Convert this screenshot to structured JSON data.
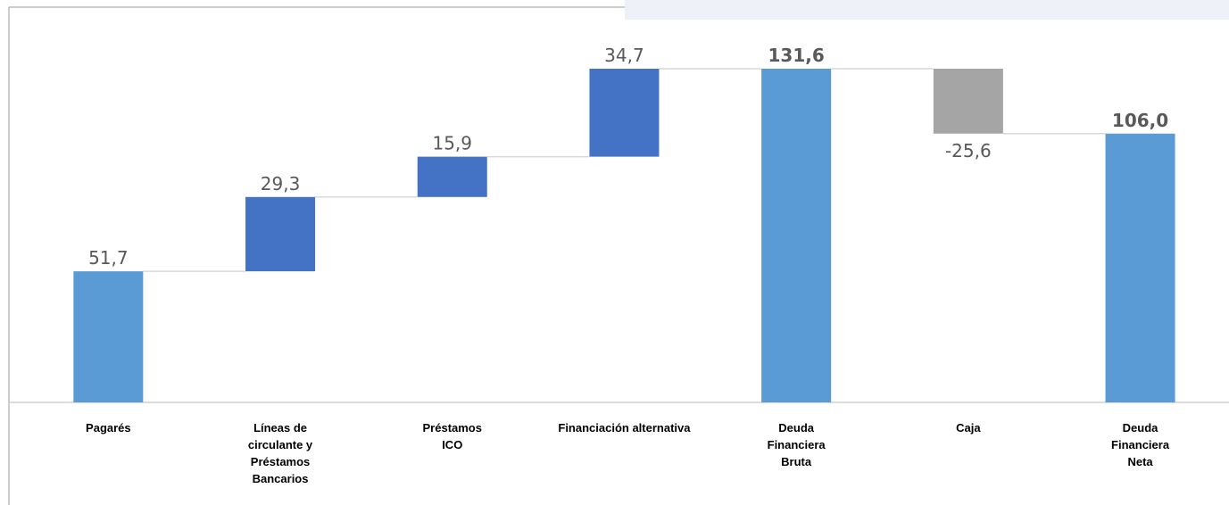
{
  "chart_data": {
    "type": "waterfall",
    "categories": [
      "Pagarés",
      "Líneas de circulante y Préstamos Bancarios",
      "Préstamos ICO",
      "Financiación alternativa",
      "Deuda Financiera Bruta",
      "Caja",
      "Deuda Financiera Neta"
    ],
    "values": [
      51.7,
      29.3,
      15.9,
      34.7,
      131.6,
      -25.6,
      106.0
    ],
    "value_labels": [
      "51,7",
      "29,3",
      "15,9",
      "34,7",
      "131,6",
      "-25,6",
      "106,0"
    ],
    "measure": [
      "relative",
      "relative",
      "relative",
      "relative",
      "total",
      "relative",
      "total"
    ],
    "colors": [
      "#5b9bd5",
      "#4472c4",
      "#4472c4",
      "#4472c4",
      "#5b9bd5",
      "#a5a5a5",
      "#5b9bd5"
    ]
  }
}
